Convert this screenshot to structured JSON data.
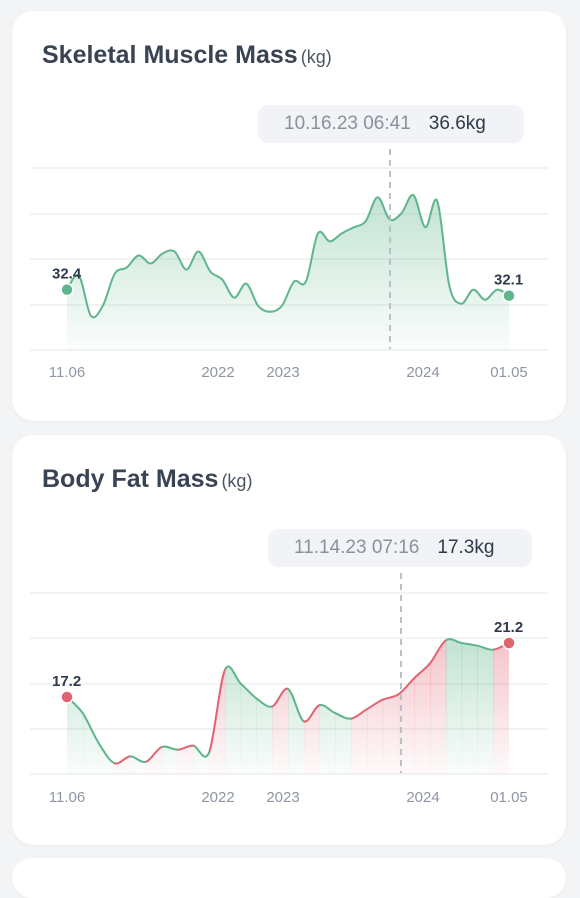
{
  "colors": {
    "muscle": "#5fb58c",
    "fat": "#e06372",
    "grid": "#e4e7eb",
    "cursor": "#bcc0c6"
  },
  "cards": [
    {
      "id": "smm",
      "title": "Skeletal Muscle Mass",
      "unit": "(kg)",
      "tooltip": {
        "date": "10.16.23 06:41",
        "value": "36.6kg"
      },
      "x_labels": [
        "11.06",
        "2022",
        "2023",
        "2024",
        "01.05"
      ],
      "chart_data": {
        "type": "area",
        "unit": "kg",
        "x_range": [
          "11.06",
          "01.05"
        ],
        "highlighted_point": {
          "date": "10.16.23 06:41",
          "value": 36.6
        },
        "start": {
          "label": "32.4",
          "value": 32.4
        },
        "end": {
          "label": "32.1",
          "value": 32.1
        },
        "series": [
          {
            "values": [
              32.4,
              33.1,
              31.1,
              31.6,
              33.2,
              33.5,
              34.1,
              33.7,
              34.2,
              34.3,
              33.4,
              34.3,
              33.3,
              32.9,
              32.0,
              32.7,
              31.6,
              31.3,
              31.6,
              32.8,
              32.8,
              35.2,
              34.8,
              35.2,
              35.5,
              35.8,
              37.0,
              35.9,
              36.2,
              37.1,
              35.5,
              36.8,
              32.6,
              31.7,
              32.4,
              31.9,
              32.4,
              32.1
            ]
          }
        ]
      }
    },
    {
      "id": "bfm",
      "title": "Body Fat Mass",
      "unit": "(kg)",
      "tooltip": {
        "date": "11.14.23 07:16",
        "value": "17.3kg"
      },
      "x_labels": [
        "11.06",
        "2022",
        "2023",
        "2024",
        "01.05"
      ],
      "chart_data": {
        "type": "area",
        "unit": "kg",
        "x_range": [
          "11.06",
          "01.05"
        ],
        "highlighted_point": {
          "date": "11.14.23 07:16",
          "value": 17.3
        },
        "start": {
          "label": "17.2",
          "value": 17.2
        },
        "end": {
          "label": "21.2",
          "value": 21.2
        },
        "series": [
          {
            "values": [
              17.2,
              16.0,
              13.8,
              12.3,
              12.8,
              12.4,
              13.5,
              13.3,
              13.6,
              13.1,
              19.2,
              18.2,
              17.1,
              16.5,
              17.8,
              15.4,
              16.6,
              16.0,
              15.6,
              16.3,
              17.0,
              17.4,
              18.6,
              19.7,
              21.4,
              21.2,
              21.0,
              20.7,
              21.2
            ]
          }
        ]
      }
    }
  ]
}
